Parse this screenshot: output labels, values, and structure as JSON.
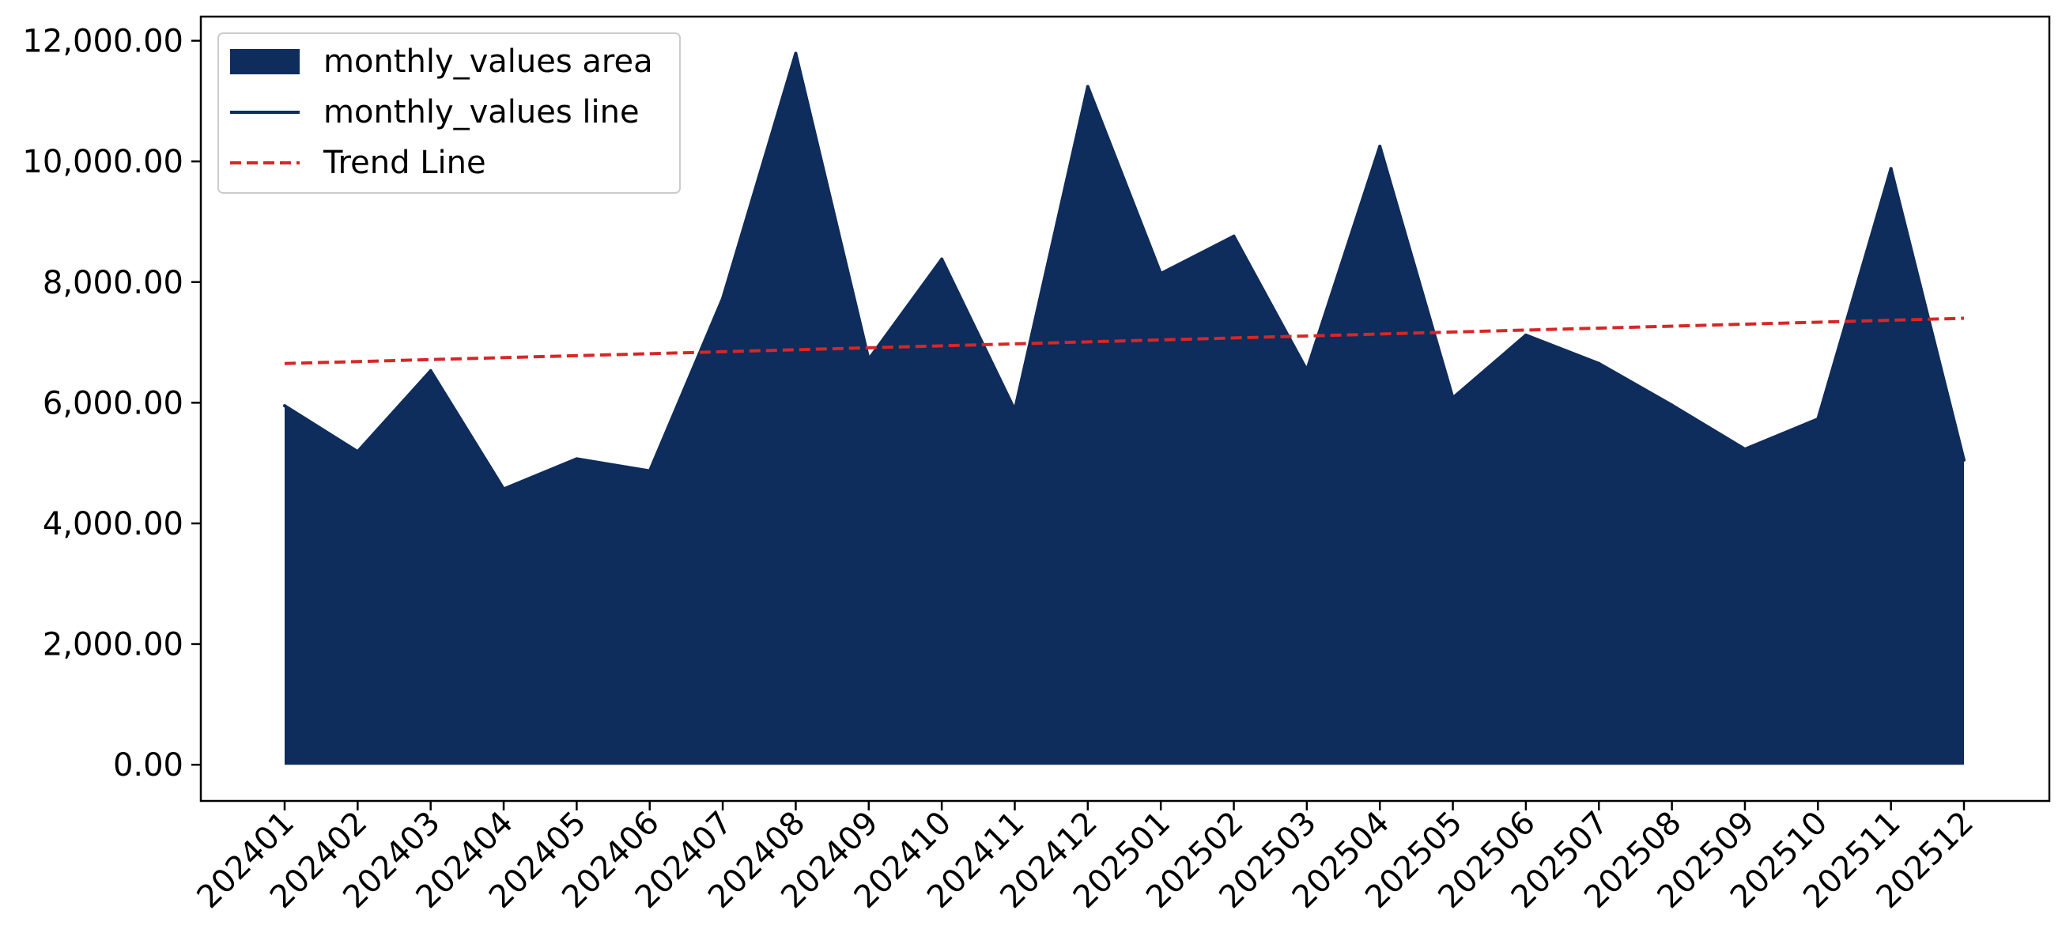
{
  "chart_data": {
    "type": "area",
    "title": "",
    "xlabel": "",
    "ylabel": "",
    "categories": [
      "202401",
      "202402",
      "202403",
      "202404",
      "202405",
      "202406",
      "202407",
      "202408",
      "202409",
      "202410",
      "202411",
      "202412",
      "202501",
      "202502",
      "202503",
      "202504",
      "202505",
      "202506",
      "202507",
      "202508",
      "202509",
      "202510",
      "202511",
      "202512"
    ],
    "series": [
      {
        "name": "monthly_values area",
        "kind": "area",
        "color": "#0e2c5c",
        "values": [
          5950,
          5190,
          6530,
          4570,
          5070,
          4870,
          7730,
          11790,
          6720,
          8380,
          5880,
          11240,
          8140,
          8760,
          6540,
          10250,
          6080,
          7120,
          6650,
          5960,
          5230,
          5730,
          9880,
          5050
        ]
      },
      {
        "name": "monthly_values line",
        "kind": "line",
        "color": "#0e2c5c"
      },
      {
        "name": "Trend Line",
        "kind": "dashed-line",
        "color": "#d62728",
        "start": 6650,
        "end": 7400
      }
    ],
    "y_ticks": [
      "0.00",
      "2,000.00",
      "4,000.00",
      "6,000.00",
      "8,000.00",
      "10,000.00",
      "12,000.00"
    ],
    "ylim": [
      -600,
      12400
    ],
    "grid": false,
    "legend_position": "upper-left"
  }
}
